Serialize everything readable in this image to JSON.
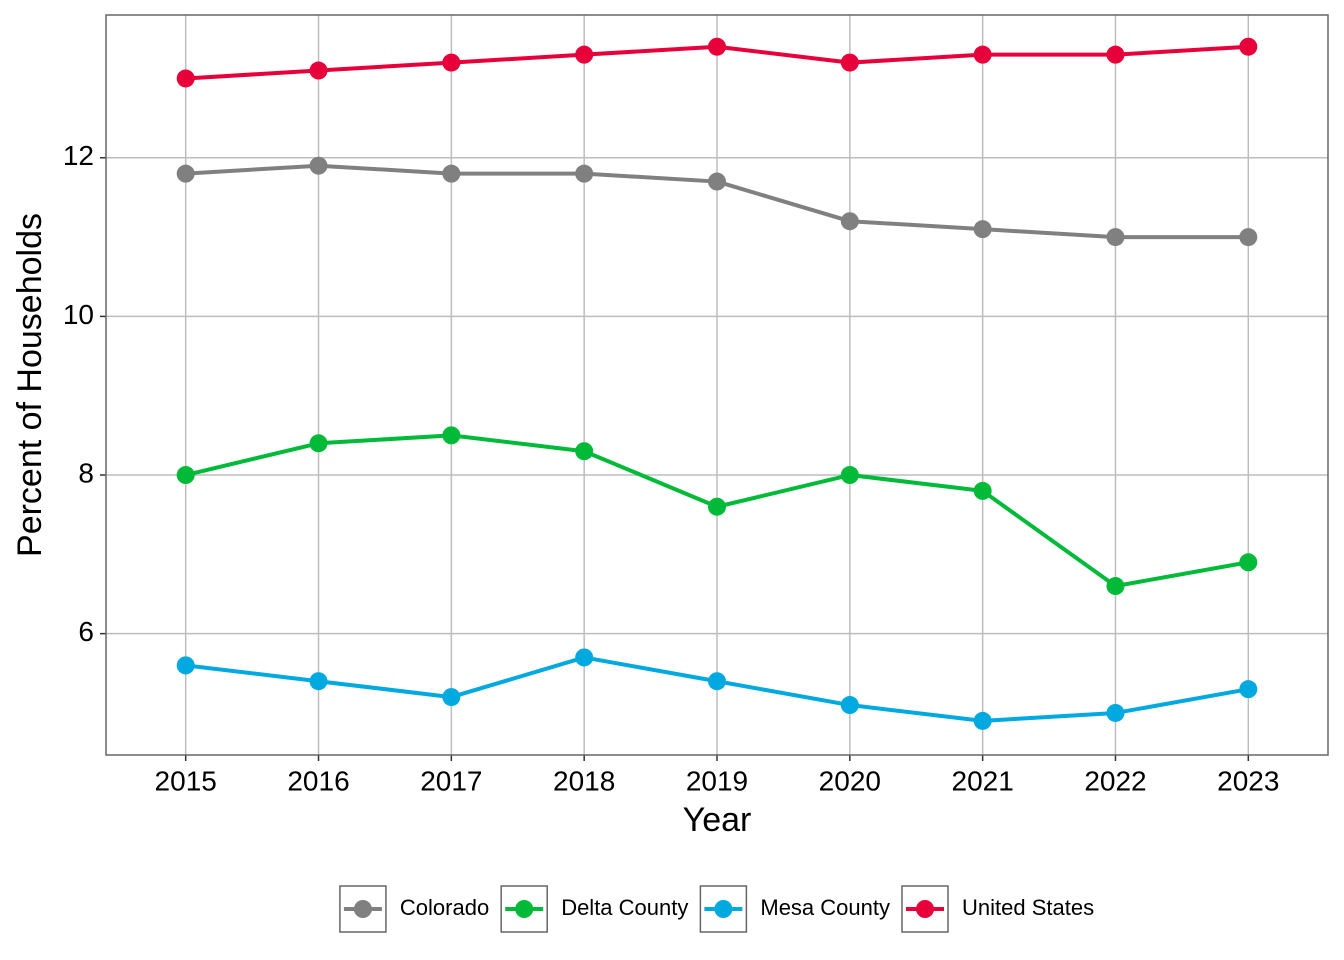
{
  "chart_data": {
    "type": "line",
    "x_label": "Year",
    "y_label": "Percent of Households",
    "x": [
      2015,
      2016,
      2017,
      2018,
      2019,
      2020,
      2021,
      2022,
      2023
    ],
    "xlim": [
      2014.4,
      2023.6
    ],
    "xticks": [
      2015,
      2016,
      2017,
      2018,
      2019,
      2020,
      2021,
      2022,
      2023
    ],
    "ylim": [
      4.47,
      13.8
    ],
    "yticks": [
      6,
      8,
      10,
      12
    ],
    "grid": true,
    "legend": "bottom",
    "series": [
      {
        "name": "Colorado",
        "color": "#808080",
        "values": [
          11.8,
          11.9,
          11.8,
          11.8,
          11.7,
          11.2,
          11.1,
          11.0,
          11.0
        ]
      },
      {
        "name": "Delta County",
        "color": "#00ba38",
        "values": [
          8.0,
          8.4,
          8.5,
          8.3,
          7.6,
          8.0,
          7.8,
          6.6,
          6.9
        ]
      },
      {
        "name": "Mesa County",
        "color": "#00a9e0",
        "values": [
          5.6,
          5.4,
          5.2,
          5.7,
          5.4,
          5.1,
          4.9,
          5.0,
          5.3
        ]
      },
      {
        "name": "United States",
        "color": "#e8003a",
        "values": [
          13.0,
          13.1,
          13.2,
          13.3,
          13.4,
          13.2,
          13.3,
          13.3,
          13.4
        ]
      }
    ]
  }
}
